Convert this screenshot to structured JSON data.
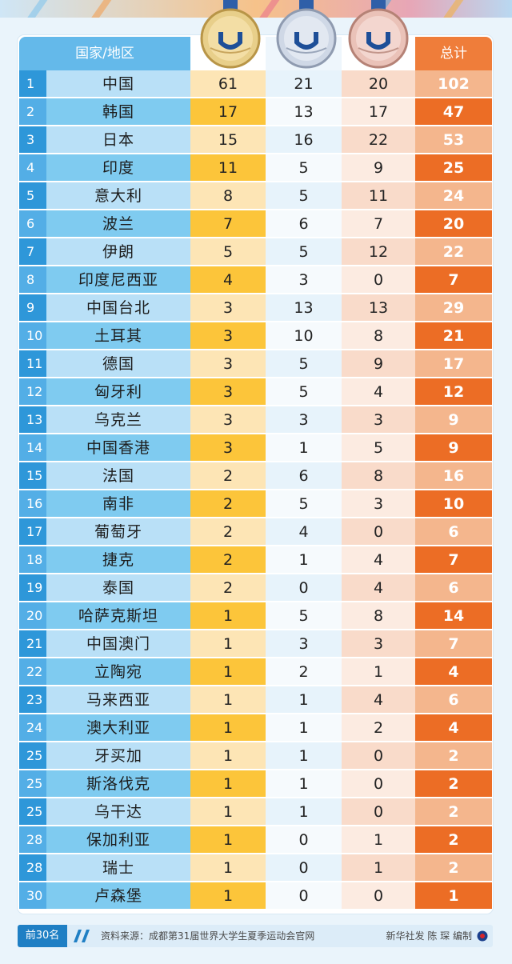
{
  "header": {
    "country_label": "国家/地区",
    "total_label": "总计",
    "gold_medal": "gold-medal-icon",
    "silver_medal": "silver-medal-icon",
    "bronze_medal": "bronze-medal-icon"
  },
  "rows": [
    {
      "rank": "1",
      "country": "中国",
      "gold": "61",
      "silver": "21",
      "bronze": "20",
      "total": "102"
    },
    {
      "rank": "2",
      "country": "韩国",
      "gold": "17",
      "silver": "13",
      "bronze": "17",
      "total": "47"
    },
    {
      "rank": "3",
      "country": "日本",
      "gold": "15",
      "silver": "16",
      "bronze": "22",
      "total": "53"
    },
    {
      "rank": "4",
      "country": "印度",
      "gold": "11",
      "silver": "5",
      "bronze": "9",
      "total": "25"
    },
    {
      "rank": "5",
      "country": "意大利",
      "gold": "8",
      "silver": "5",
      "bronze": "11",
      "total": "24"
    },
    {
      "rank": "6",
      "country": "波兰",
      "gold": "7",
      "silver": "6",
      "bronze": "7",
      "total": "20"
    },
    {
      "rank": "7",
      "country": "伊朗",
      "gold": "5",
      "silver": "5",
      "bronze": "12",
      "total": "22"
    },
    {
      "rank": "8",
      "country": "印度尼西亚",
      "gold": "4",
      "silver": "3",
      "bronze": "0",
      "total": "7"
    },
    {
      "rank": "9",
      "country": "中国台北",
      "gold": "3",
      "silver": "13",
      "bronze": "13",
      "total": "29"
    },
    {
      "rank": "10",
      "country": "土耳其",
      "gold": "3",
      "silver": "10",
      "bronze": "8",
      "total": "21"
    },
    {
      "rank": "11",
      "country": "德国",
      "gold": "3",
      "silver": "5",
      "bronze": "9",
      "total": "17"
    },
    {
      "rank": "12",
      "country": "匈牙利",
      "gold": "3",
      "silver": "5",
      "bronze": "4",
      "total": "12"
    },
    {
      "rank": "13",
      "country": "乌克兰",
      "gold": "3",
      "silver": "3",
      "bronze": "3",
      "total": "9"
    },
    {
      "rank": "14",
      "country": "中国香港",
      "gold": "3",
      "silver": "1",
      "bronze": "5",
      "total": "9"
    },
    {
      "rank": "15",
      "country": "法国",
      "gold": "2",
      "silver": "6",
      "bronze": "8",
      "total": "16"
    },
    {
      "rank": "16",
      "country": "南非",
      "gold": "2",
      "silver": "5",
      "bronze": "3",
      "total": "10"
    },
    {
      "rank": "17",
      "country": "葡萄牙",
      "gold": "2",
      "silver": "4",
      "bronze": "0",
      "total": "6"
    },
    {
      "rank": "18",
      "country": "捷克",
      "gold": "2",
      "silver": "1",
      "bronze": "4",
      "total": "7"
    },
    {
      "rank": "19",
      "country": "泰国",
      "gold": "2",
      "silver": "0",
      "bronze": "4",
      "total": "6"
    },
    {
      "rank": "20",
      "country": "哈萨克斯坦",
      "gold": "1",
      "silver": "5",
      "bronze": "8",
      "total": "14"
    },
    {
      "rank": "21",
      "country": "中国澳门",
      "gold": "1",
      "silver": "3",
      "bronze": "3",
      "total": "7"
    },
    {
      "rank": "22",
      "country": "立陶宛",
      "gold": "1",
      "silver": "2",
      "bronze": "1",
      "total": "4"
    },
    {
      "rank": "23",
      "country": "马来西亚",
      "gold": "1",
      "silver": "1",
      "bronze": "4",
      "total": "6"
    },
    {
      "rank": "24",
      "country": "澳大利亚",
      "gold": "1",
      "silver": "1",
      "bronze": "2",
      "total": "4"
    },
    {
      "rank": "25",
      "country": "牙买加",
      "gold": "1",
      "silver": "1",
      "bronze": "0",
      "total": "2"
    },
    {
      "rank": "25",
      "country": "斯洛伐克",
      "gold": "1",
      "silver": "1",
      "bronze": "0",
      "total": "2"
    },
    {
      "rank": "25",
      "country": "乌干达",
      "gold": "1",
      "silver": "1",
      "bronze": "0",
      "total": "2"
    },
    {
      "rank": "28",
      "country": "保加利亚",
      "gold": "1",
      "silver": "0",
      "bronze": "1",
      "total": "2"
    },
    {
      "rank": "28",
      "country": "瑞士",
      "gold": "1",
      "silver": "0",
      "bronze": "1",
      "total": "2"
    },
    {
      "rank": "30",
      "country": "卢森堡",
      "gold": "1",
      "silver": "0",
      "bronze": "0",
      "total": "1"
    }
  ],
  "footer": {
    "rank_note": "前30名",
    "source": "资料来源：成都第31届世界大学生夏季运动会官网",
    "credit": "新华社发 陈 琛 编制",
    "logo": "xinhua-logo-icon"
  },
  "colors": {
    "blue_header": "#64b9ea",
    "rank_blue": "#2e97d9",
    "gold": "#fcc53a",
    "orange_total": "#ec6d25"
  }
}
